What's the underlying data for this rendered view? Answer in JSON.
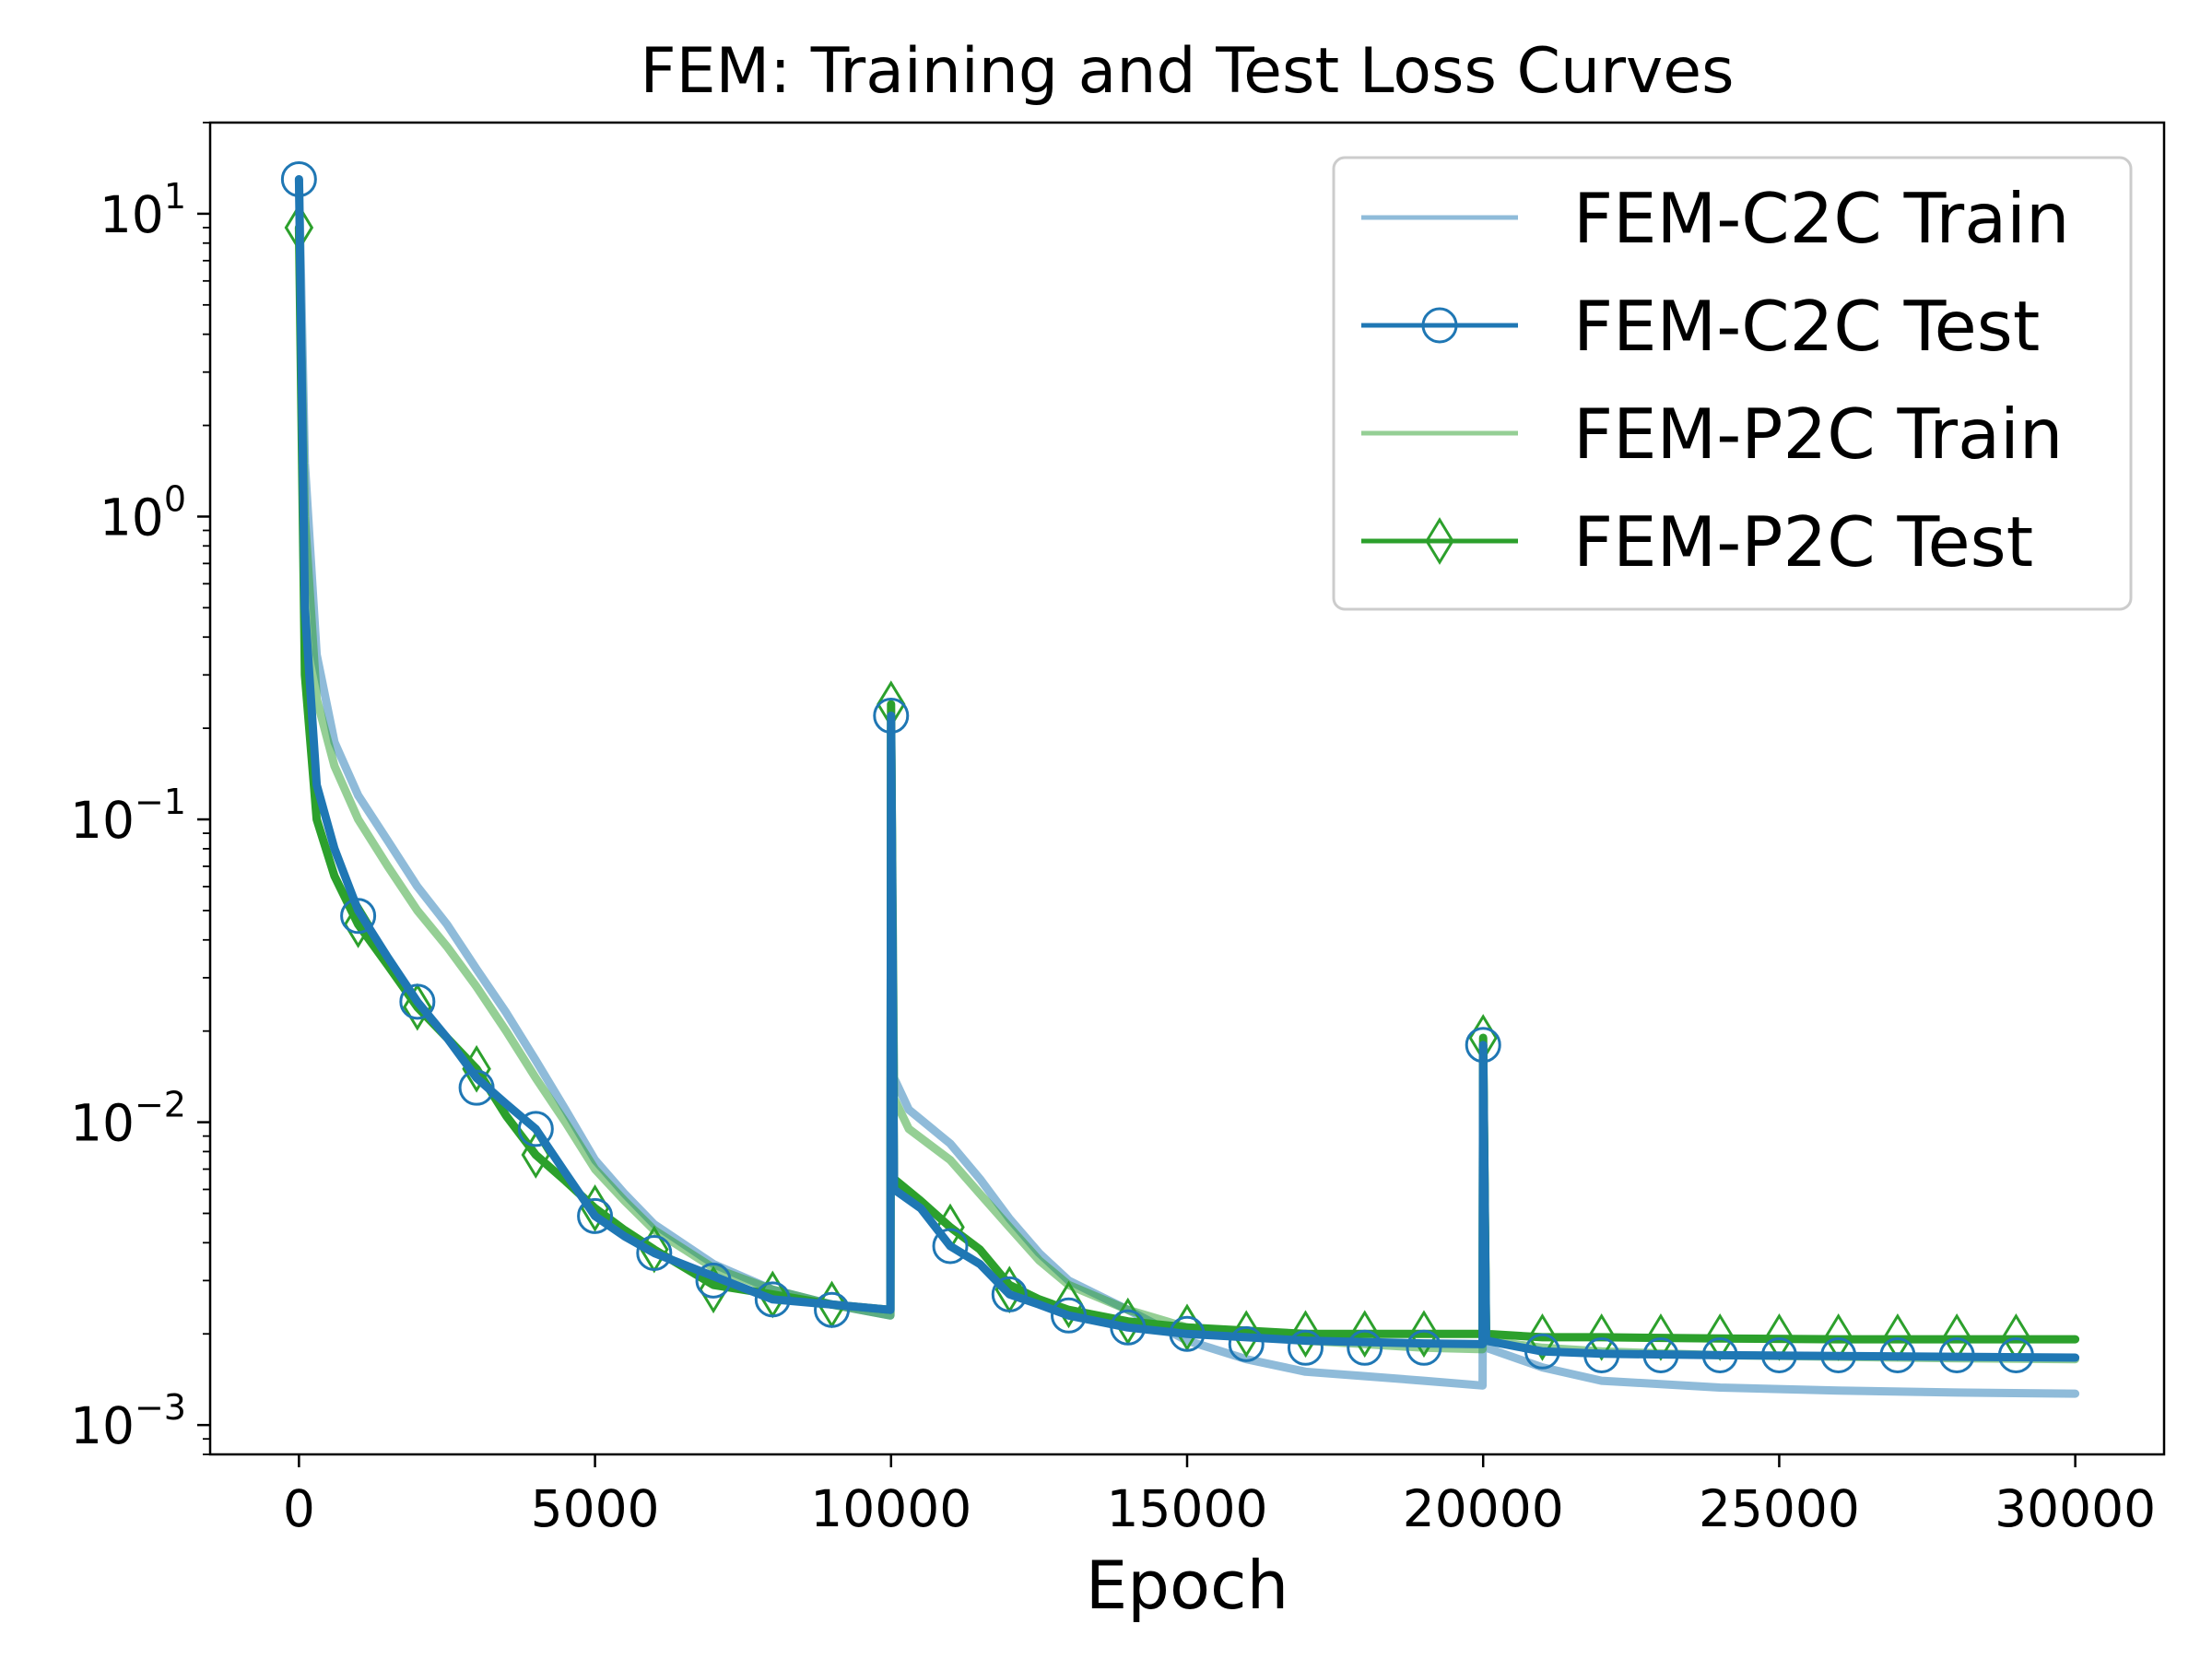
{
  "chart_data": {
    "type": "line",
    "title": "FEM: Training and Test Loss Curves",
    "xlabel": "Epoch",
    "ylabel": "",
    "yscale": "log",
    "xlim": [
      -1500,
      31500
    ],
    "ylim": [
      0.0008,
      20
    ],
    "x_ticks": [
      {
        "value": 0,
        "label": "0"
      },
      {
        "value": 5000,
        "label": "5000"
      },
      {
        "value": 10000,
        "label": "10000"
      },
      {
        "value": 15000,
        "label": "15000"
      },
      {
        "value": 20000,
        "label": "20000"
      },
      {
        "value": 25000,
        "label": "25000"
      },
      {
        "value": 30000,
        "label": "30000"
      }
    ],
    "y_ticks": [
      {
        "value": 0.001,
        "base": "10",
        "exp": "−3"
      },
      {
        "value": 0.01,
        "base": "10",
        "exp": "−2"
      },
      {
        "value": 0.1,
        "base": "10",
        "exp": "−1"
      },
      {
        "value": 1,
        "base": "10",
        "exp": "0"
      },
      {
        "value": 10,
        "base": "10",
        "exp": "1"
      }
    ],
    "legend": {
      "position": "top-right"
    },
    "series": [
      {
        "name": "FEM-C2C Train",
        "color": "#1f77b4",
        "opacity": 0.5,
        "marker": "none",
        "points": [
          [
            0,
            13
          ],
          [
            100,
            1.5
          ],
          [
            300,
            0.35
          ],
          [
            600,
            0.18
          ],
          [
            1000,
            0.12
          ],
          [
            1500,
            0.085
          ],
          [
            2000,
            0.06
          ],
          [
            2500,
            0.045
          ],
          [
            3000,
            0.032
          ],
          [
            3500,
            0.023
          ],
          [
            4000,
            0.016
          ],
          [
            4500,
            0.011
          ],
          [
            5000,
            0.0075
          ],
          [
            5500,
            0.0058
          ],
          [
            6000,
            0.0046
          ],
          [
            7000,
            0.0034
          ],
          [
            8000,
            0.0028
          ],
          [
            9000,
            0.0025
          ],
          [
            9990,
            0.0023
          ],
          [
            10000,
            0.2
          ],
          [
            10050,
            0.014
          ],
          [
            10300,
            0.011
          ],
          [
            11000,
            0.0085
          ],
          [
            11500,
            0.0065
          ],
          [
            12000,
            0.0048
          ],
          [
            12500,
            0.0037
          ],
          [
            13000,
            0.003
          ],
          [
            14000,
            0.0024
          ],
          [
            15000,
            0.0019
          ],
          [
            16000,
            0.00165
          ],
          [
            17000,
            0.0015
          ],
          [
            18000,
            0.00145
          ],
          [
            19000,
            0.0014
          ],
          [
            19990,
            0.00135
          ],
          [
            20000,
            0.016
          ],
          [
            20050,
            0.0018
          ],
          [
            21000,
            0.00155
          ],
          [
            22000,
            0.0014
          ],
          [
            24000,
            0.00133
          ],
          [
            26000,
            0.0013
          ],
          [
            28000,
            0.00128
          ],
          [
            30000,
            0.00127
          ]
        ]
      },
      {
        "name": "FEM-C2C Test",
        "color": "#1f77b4",
        "opacity": 1,
        "marker": "circle",
        "points": [
          [
            0,
            13
          ],
          [
            100,
            0.5
          ],
          [
            300,
            0.13
          ],
          [
            600,
            0.08
          ],
          [
            1000,
            0.05
          ],
          [
            1500,
            0.035
          ],
          [
            2000,
            0.025
          ],
          [
            2500,
            0.019
          ],
          [
            3000,
            0.014
          ],
          [
            3500,
            0.0115
          ],
          [
            4000,
            0.0095
          ],
          [
            4500,
            0.0068
          ],
          [
            5000,
            0.0049
          ],
          [
            5500,
            0.0042
          ],
          [
            6000,
            0.0037
          ],
          [
            7000,
            0.0031
          ],
          [
            8000,
            0.0026
          ],
          [
            9000,
            0.0025
          ],
          [
            9990,
            0.0024
          ],
          [
            10000,
            0.22
          ],
          [
            10050,
            0.006
          ],
          [
            10500,
            0.0052
          ],
          [
            11000,
            0.0039
          ],
          [
            11500,
            0.0034
          ],
          [
            12000,
            0.0027
          ],
          [
            12500,
            0.0025
          ],
          [
            13000,
            0.0023
          ],
          [
            14000,
            0.0021
          ],
          [
            15000,
            0.002
          ],
          [
            16000,
            0.00195
          ],
          [
            17000,
            0.0019
          ],
          [
            18000,
            0.00188
          ],
          [
            19000,
            0.00186
          ],
          [
            19990,
            0.00185
          ],
          [
            20000,
            0.018
          ],
          [
            20050,
            0.0019
          ],
          [
            21000,
            0.00175
          ],
          [
            22000,
            0.00172
          ],
          [
            24000,
            0.0017
          ],
          [
            26000,
            0.00169
          ],
          [
            28000,
            0.00168
          ],
          [
            30000,
            0.00167
          ]
        ],
        "marker_points": [
          [
            0,
            13
          ],
          [
            1000,
            0.048
          ],
          [
            2000,
            0.025
          ],
          [
            3000,
            0.013
          ],
          [
            4000,
            0.0095
          ],
          [
            5000,
            0.0049
          ],
          [
            6000,
            0.0037
          ],
          [
            7000,
            0.003
          ],
          [
            8000,
            0.0026
          ],
          [
            9000,
            0.0024
          ],
          [
            10000,
            0.22
          ],
          [
            11000,
            0.0039
          ],
          [
            12000,
            0.0027
          ],
          [
            13000,
            0.0023
          ],
          [
            14000,
            0.0021
          ],
          [
            15000,
            0.002
          ],
          [
            16000,
            0.00185
          ],
          [
            17000,
            0.0018
          ],
          [
            18000,
            0.0018
          ],
          [
            19000,
            0.0018
          ],
          [
            20000,
            0.018
          ],
          [
            21000,
            0.00175
          ],
          [
            22000,
            0.0017
          ],
          [
            23000,
            0.0017
          ],
          [
            24000,
            0.0017
          ],
          [
            25000,
            0.0017
          ],
          [
            26000,
            0.0017
          ],
          [
            27000,
            0.0017
          ],
          [
            28000,
            0.0017
          ],
          [
            29000,
            0.0017
          ]
        ]
      },
      {
        "name": "FEM-P2C Train",
        "color": "#2ca02c",
        "opacity": 0.5,
        "marker": "none",
        "points": [
          [
            0,
            9
          ],
          [
            100,
            1.0
          ],
          [
            300,
            0.25
          ],
          [
            600,
            0.15
          ],
          [
            1000,
            0.1
          ],
          [
            1500,
            0.07
          ],
          [
            2000,
            0.05
          ],
          [
            2500,
            0.038
          ],
          [
            3000,
            0.028
          ],
          [
            3500,
            0.02
          ],
          [
            4000,
            0.014
          ],
          [
            4500,
            0.01
          ],
          [
            5000,
            0.007
          ],
          [
            5500,
            0.0055
          ],
          [
            6000,
            0.0044
          ],
          [
            7000,
            0.0033
          ],
          [
            8000,
            0.0028
          ],
          [
            9000,
            0.0025
          ],
          [
            9990,
            0.0023
          ],
          [
            10000,
            0.22
          ],
          [
            10050,
            0.012
          ],
          [
            10300,
            0.0095
          ],
          [
            11000,
            0.0075
          ],
          [
            11500,
            0.0058
          ],
          [
            12000,
            0.0045
          ],
          [
            12500,
            0.0035
          ],
          [
            13000,
            0.0029
          ],
          [
            14000,
            0.0024
          ],
          [
            15000,
            0.0021
          ],
          [
            16000,
            0.002
          ],
          [
            17000,
            0.0019
          ],
          [
            18000,
            0.00185
          ],
          [
            19000,
            0.0018
          ],
          [
            19990,
            0.00178
          ],
          [
            20000,
            0.018
          ],
          [
            20050,
            0.0019
          ],
          [
            21000,
            0.0018
          ],
          [
            22000,
            0.00175
          ],
          [
            24000,
            0.0017
          ],
          [
            26000,
            0.00168
          ],
          [
            28000,
            0.00166
          ],
          [
            30000,
            0.00165
          ]
        ]
      },
      {
        "name": "FEM-P2C Test",
        "color": "#2ca02c",
        "opacity": 1,
        "marker": "diamond",
        "points": [
          [
            0,
            9
          ],
          [
            100,
            0.3
          ],
          [
            300,
            0.1
          ],
          [
            600,
            0.065
          ],
          [
            1000,
            0.045
          ],
          [
            1500,
            0.033
          ],
          [
            2000,
            0.024
          ],
          [
            2500,
            0.019
          ],
          [
            3000,
            0.015
          ],
          [
            3500,
            0.0105
          ],
          [
            4000,
            0.0078
          ],
          [
            4500,
            0.0064
          ],
          [
            5000,
            0.0052
          ],
          [
            5500,
            0.0044
          ],
          [
            6000,
            0.0038
          ],
          [
            7000,
            0.0029
          ],
          [
            8000,
            0.0027
          ],
          [
            9000,
            0.0025
          ],
          [
            9990,
            0.0024
          ],
          [
            10000,
            0.24
          ],
          [
            10050,
            0.0065
          ],
          [
            10500,
            0.0055
          ],
          [
            11000,
            0.0045
          ],
          [
            11500,
            0.0038
          ],
          [
            12000,
            0.0029
          ],
          [
            12500,
            0.0026
          ],
          [
            13000,
            0.0024
          ],
          [
            14000,
            0.0022
          ],
          [
            15000,
            0.0021
          ],
          [
            16000,
            0.00205
          ],
          [
            17000,
            0.002
          ],
          [
            18000,
            0.002
          ],
          [
            19000,
            0.002
          ],
          [
            19990,
            0.002
          ],
          [
            20000,
            0.019
          ],
          [
            20050,
            0.002
          ],
          [
            21000,
            0.00195
          ],
          [
            22000,
            0.00195
          ],
          [
            24000,
            0.00193
          ],
          [
            26000,
            0.00192
          ],
          [
            28000,
            0.00192
          ],
          [
            30000,
            0.00192
          ]
        ],
        "marker_points": [
          [
            0,
            9
          ],
          [
            1000,
            0.045
          ],
          [
            2000,
            0.024
          ],
          [
            3000,
            0.015
          ],
          [
            4000,
            0.0078
          ],
          [
            5000,
            0.0052
          ],
          [
            6000,
            0.0038
          ],
          [
            7000,
            0.0028
          ],
          [
            8000,
            0.0027
          ],
          [
            9000,
            0.0025
          ],
          [
            10000,
            0.24
          ],
          [
            11000,
            0.0045
          ],
          [
            12000,
            0.0028
          ],
          [
            13000,
            0.0025
          ],
          [
            14000,
            0.0022
          ],
          [
            15000,
            0.0021
          ],
          [
            16000,
            0.002
          ],
          [
            17000,
            0.002
          ],
          [
            18000,
            0.002
          ],
          [
            19000,
            0.002
          ],
          [
            20000,
            0.019
          ],
          [
            21000,
            0.00195
          ],
          [
            22000,
            0.00195
          ],
          [
            23000,
            0.00195
          ],
          [
            24000,
            0.00195
          ],
          [
            25000,
            0.00195
          ],
          [
            26000,
            0.00195
          ],
          [
            27000,
            0.00195
          ],
          [
            28000,
            0.00195
          ],
          [
            29000,
            0.00195
          ]
        ]
      }
    ]
  }
}
